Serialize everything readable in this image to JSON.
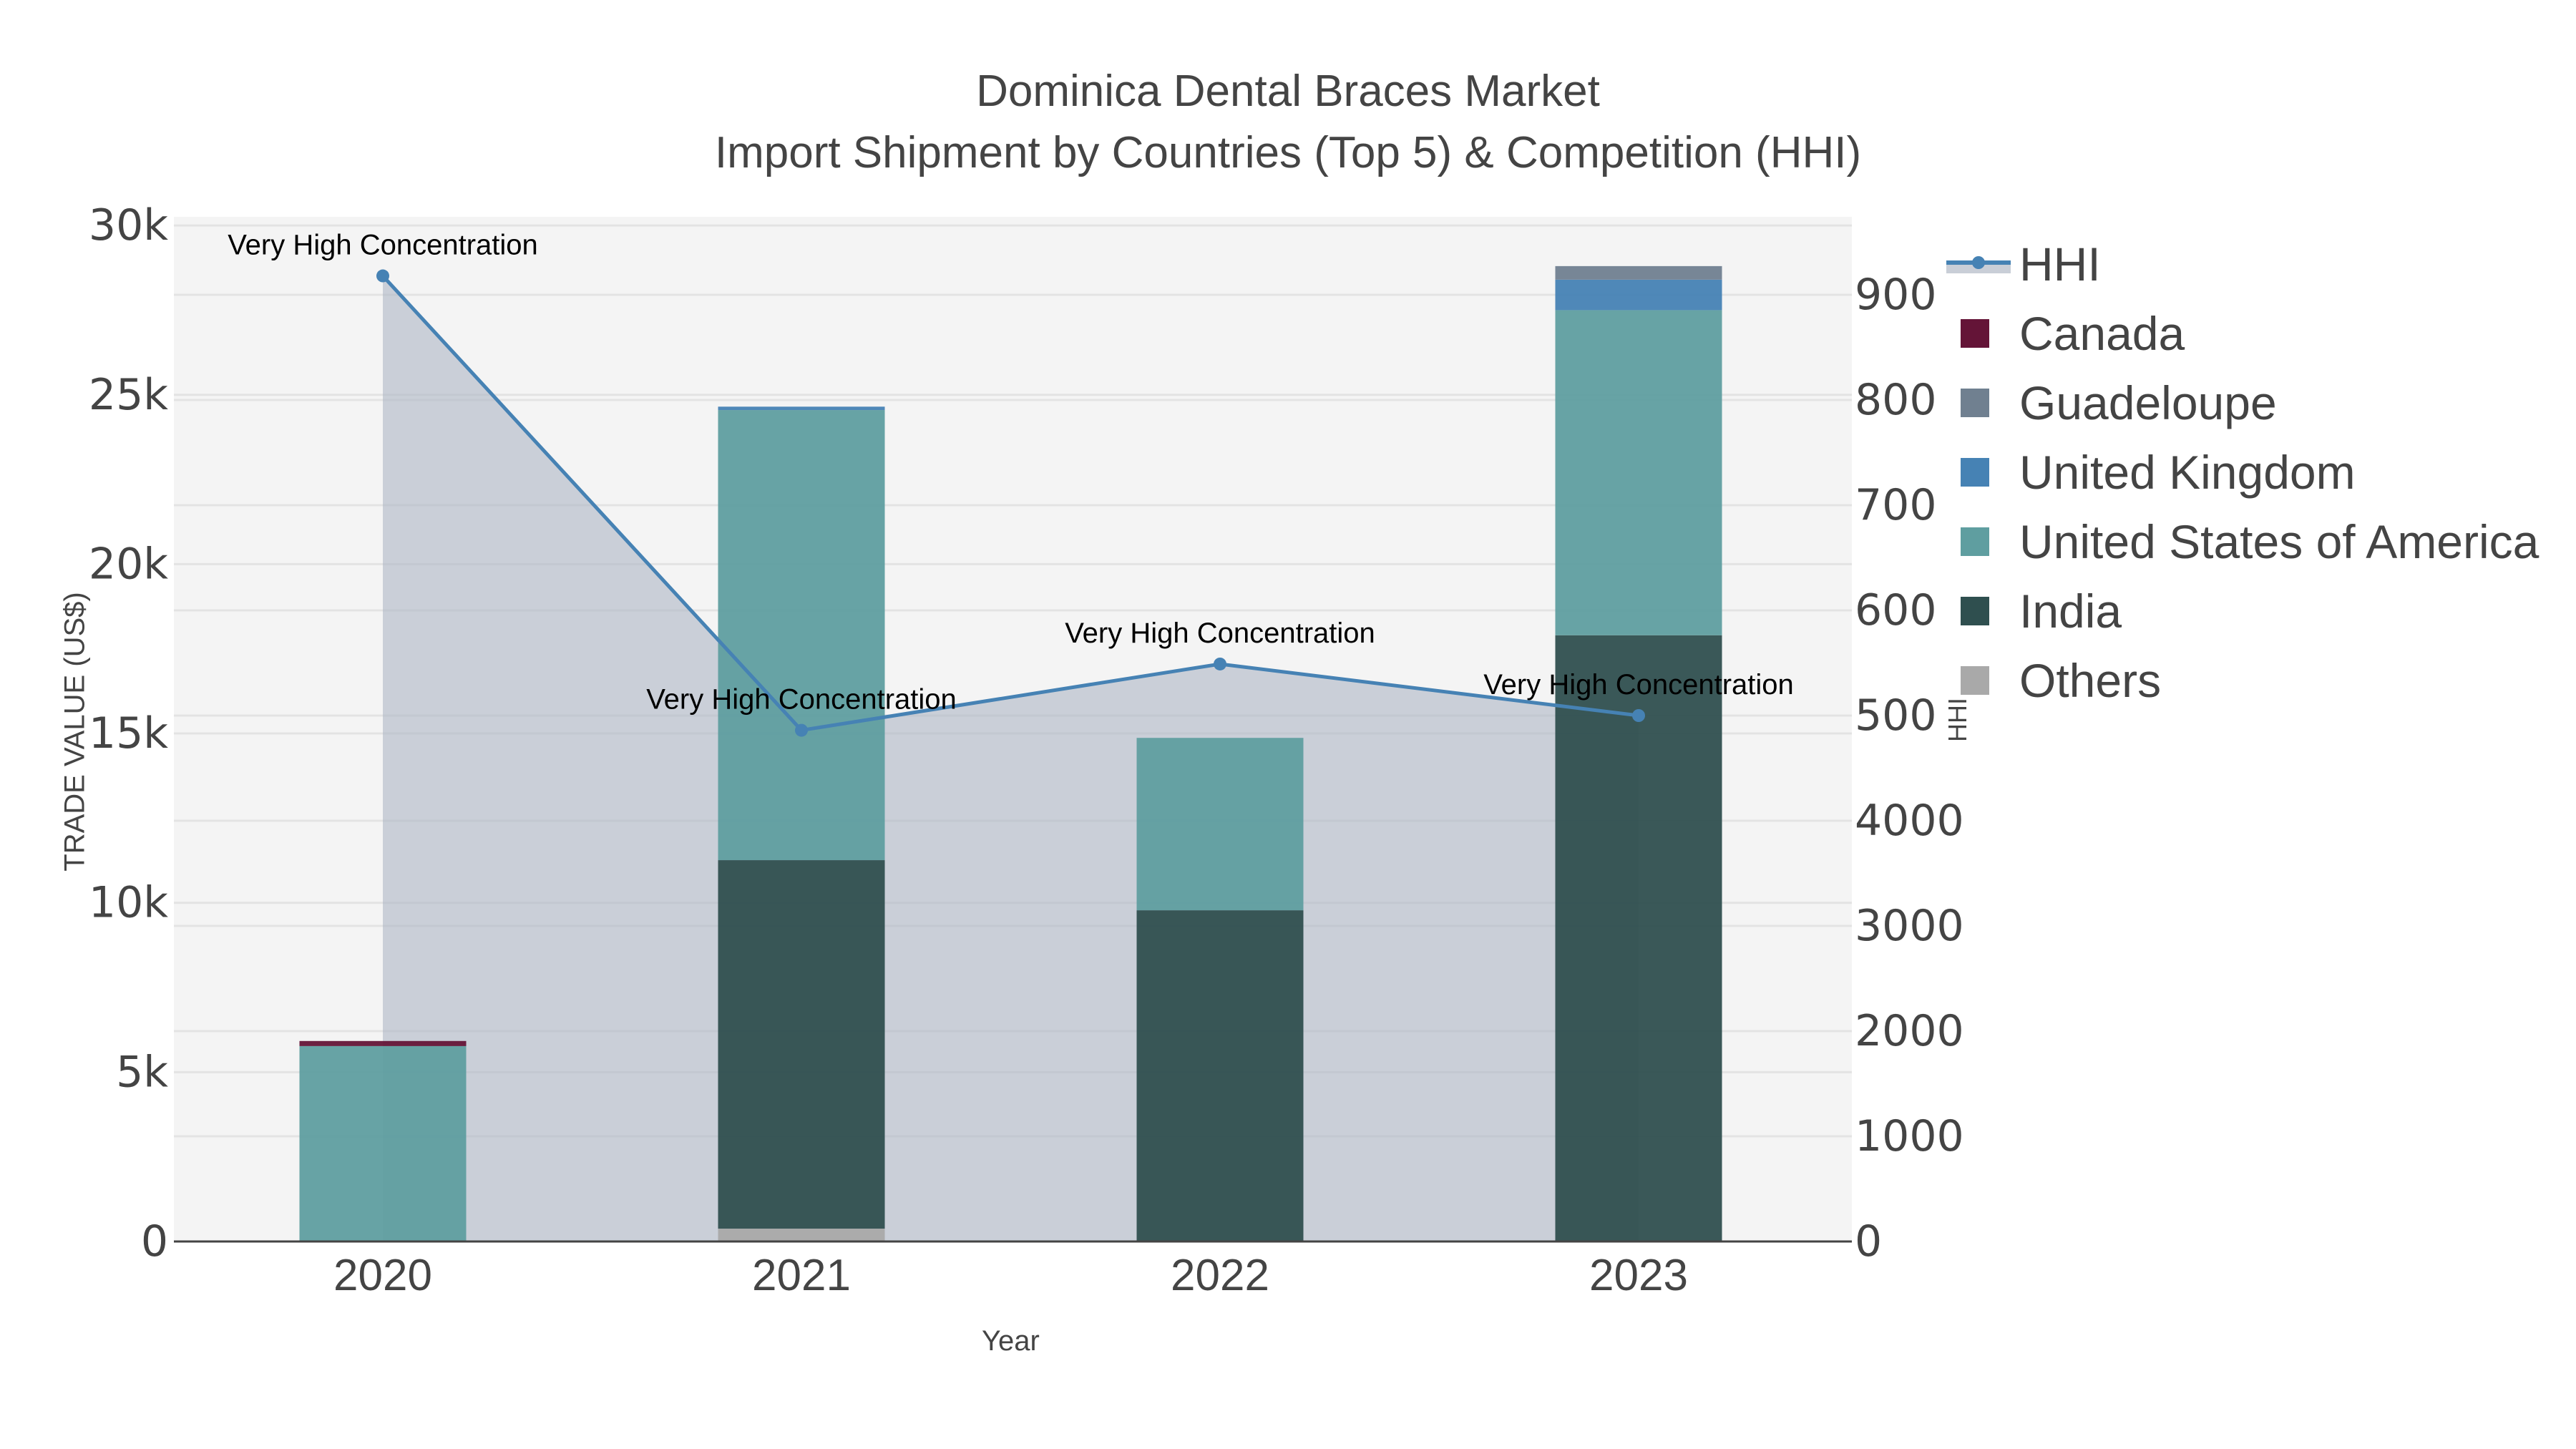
{
  "header": {
    "title_line1": "Dominica Dental Braces Market",
    "title_line2": "Import Shipment by Countries (Top 5) & Competition (HHI)"
  },
  "axes": {
    "x_title": "Year",
    "y_left_title": "TRADE VALUE (US$)",
    "y_right_title": "HHI",
    "x_ticks": [
      "2020",
      "2021",
      "2022",
      "2023"
    ],
    "y_left_ticks": [
      "0",
      "5k",
      "10k",
      "15k",
      "20k",
      "25k",
      "30k"
    ],
    "y_right_ticks_upper": [
      "500",
      "600",
      "700",
      "800",
      "900"
    ],
    "y_right_ticks_lower": [
      "0",
      "1000",
      "2000",
      "3000",
      "4000"
    ]
  },
  "legend": {
    "items": [
      {
        "label": "HHI",
        "color": "#4682b4",
        "kind": "line"
      },
      {
        "label": "Canada",
        "color": "#641437",
        "kind": "bar"
      },
      {
        "label": "Guadeloupe",
        "color": "#708090",
        "kind": "bar"
      },
      {
        "label": "United Kingdom",
        "color": "#4682b4",
        "kind": "bar"
      },
      {
        "label": "United States of America",
        "color": "#5f9ea0",
        "kind": "bar"
      },
      {
        "label": "India",
        "color": "#2f4f4f",
        "kind": "bar"
      },
      {
        "label": "Others",
        "color": "#a9a9a9",
        "kind": "bar"
      }
    ]
  },
  "annotations": [
    {
      "year": "2020",
      "text": "Very High Concentration"
    },
    {
      "year": "2021",
      "text": "Very High Concentration"
    },
    {
      "year": "2022",
      "text": "Very High Concentration"
    },
    {
      "year": "2023",
      "text": "Very High Concentration"
    }
  ],
  "chart_data": {
    "type": "bar",
    "title": "Dominica Dental Braces Market — Import Shipment by Countries (Top 5) & Competition (HHI)",
    "xlabel": "Year",
    "ylabel": "TRADE VALUE (US$)",
    "y2label": "HHI",
    "categories": [
      "2020",
      "2021",
      "2022",
      "2023"
    ],
    "stacked": true,
    "ylim": [
      0,
      30000
    ],
    "grid": true,
    "legend_position": "right",
    "series": [
      {
        "name": "Others",
        "color": "#a9a9a9",
        "values": [
          0,
          380,
          0,
          0
        ]
      },
      {
        "name": "India",
        "color": "#2f4f4f",
        "values": [
          0,
          10880,
          9780,
          17900
        ]
      },
      {
        "name": "United States of America",
        "color": "#5f9ea0",
        "values": [
          5770,
          13290,
          5090,
          9600
        ]
      },
      {
        "name": "United Kingdom",
        "color": "#4682b4",
        "values": [
          0,
          100,
          0,
          900
        ]
      },
      {
        "name": "Guadeloupe",
        "color": "#708090",
        "values": [
          0,
          0,
          0,
          400
        ]
      },
      {
        "name": "Canada",
        "color": "#641437",
        "values": [
          150,
          0,
          0,
          0
        ]
      }
    ],
    "line_series": {
      "name": "HHI",
      "axis": "right",
      "color": "#4682b4",
      "fill": "tozeroy",
      "values": [
        9180,
        4860,
        5490,
        5000
      ],
      "labels": [
        "Very High Concentration",
        "Very High Concentration",
        "Very High Concentration",
        "Very High Concentration"
      ]
    }
  }
}
